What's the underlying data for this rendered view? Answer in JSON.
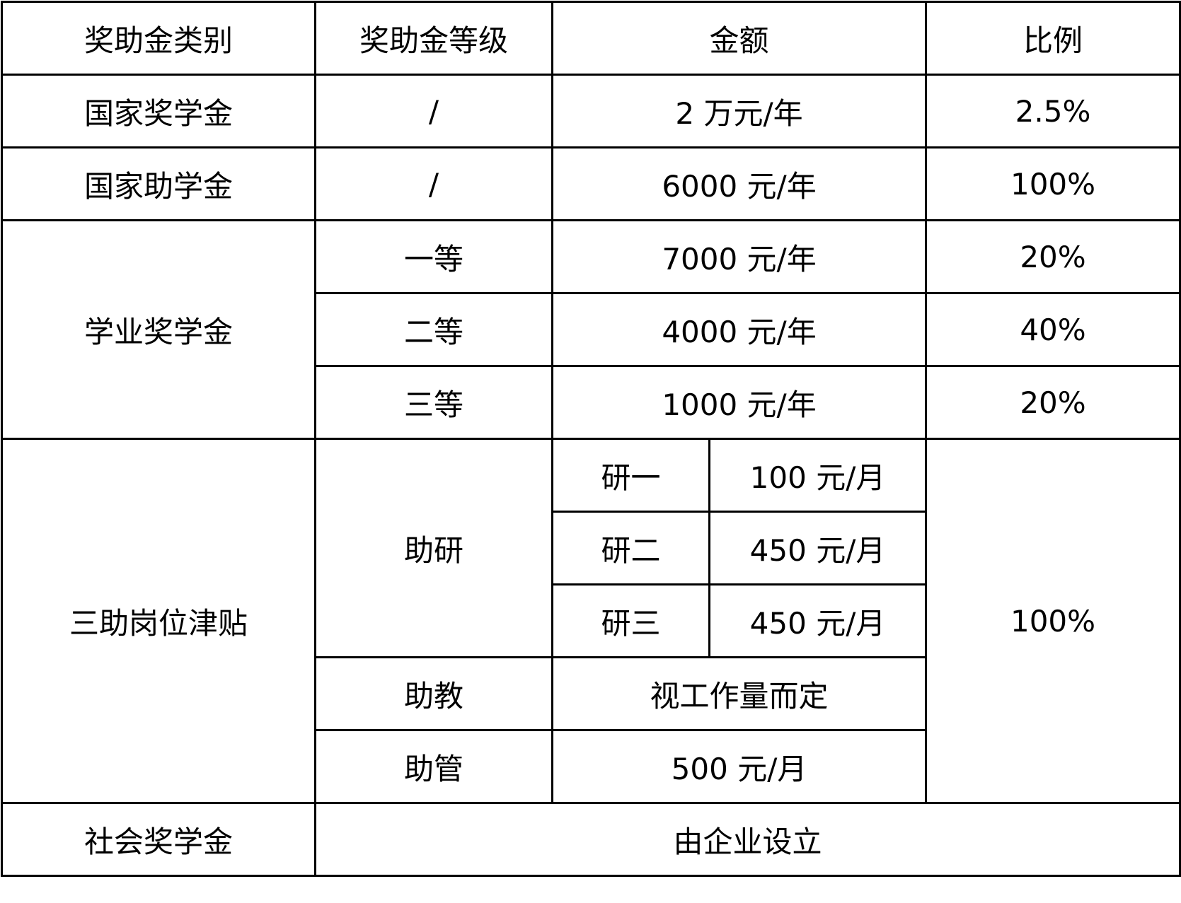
{
  "header": {
    "category": "奖助金类别",
    "level": "奖助金等级",
    "amount": "金额",
    "ratio": "比例"
  },
  "rows": {
    "national_scholarship": {
      "category": "国家奖学金",
      "level": "/",
      "amount": "2 万元/年",
      "ratio": "2.5%"
    },
    "national_grant": {
      "category": "国家助学金",
      "level": "/",
      "amount": "6000 元/年",
      "ratio": "100%"
    },
    "academic": {
      "category": "学业奖学金",
      "levels": [
        {
          "level": "一等",
          "amount": "7000 元/年",
          "ratio": "20%"
        },
        {
          "level": "二等",
          "amount": "4000 元/年",
          "ratio": "40%"
        },
        {
          "level": "三等",
          "amount": "1000 元/年",
          "ratio": "20%"
        }
      ]
    },
    "three_assistants": {
      "category": "三助岗位津贴",
      "ratio": "100%",
      "research": {
        "level": "助研",
        "years": [
          {
            "year": "研一",
            "amount": "100 元/月"
          },
          {
            "year": "研二",
            "amount": "450 元/月"
          },
          {
            "year": "研三",
            "amount": "450 元/月"
          }
        ]
      },
      "teaching": {
        "level": "助教",
        "amount": "视工作量而定"
      },
      "management": {
        "level": "助管",
        "amount": "500 元/月"
      }
    },
    "social": {
      "category": "社会奖学金",
      "amount": "由企业设立"
    }
  }
}
